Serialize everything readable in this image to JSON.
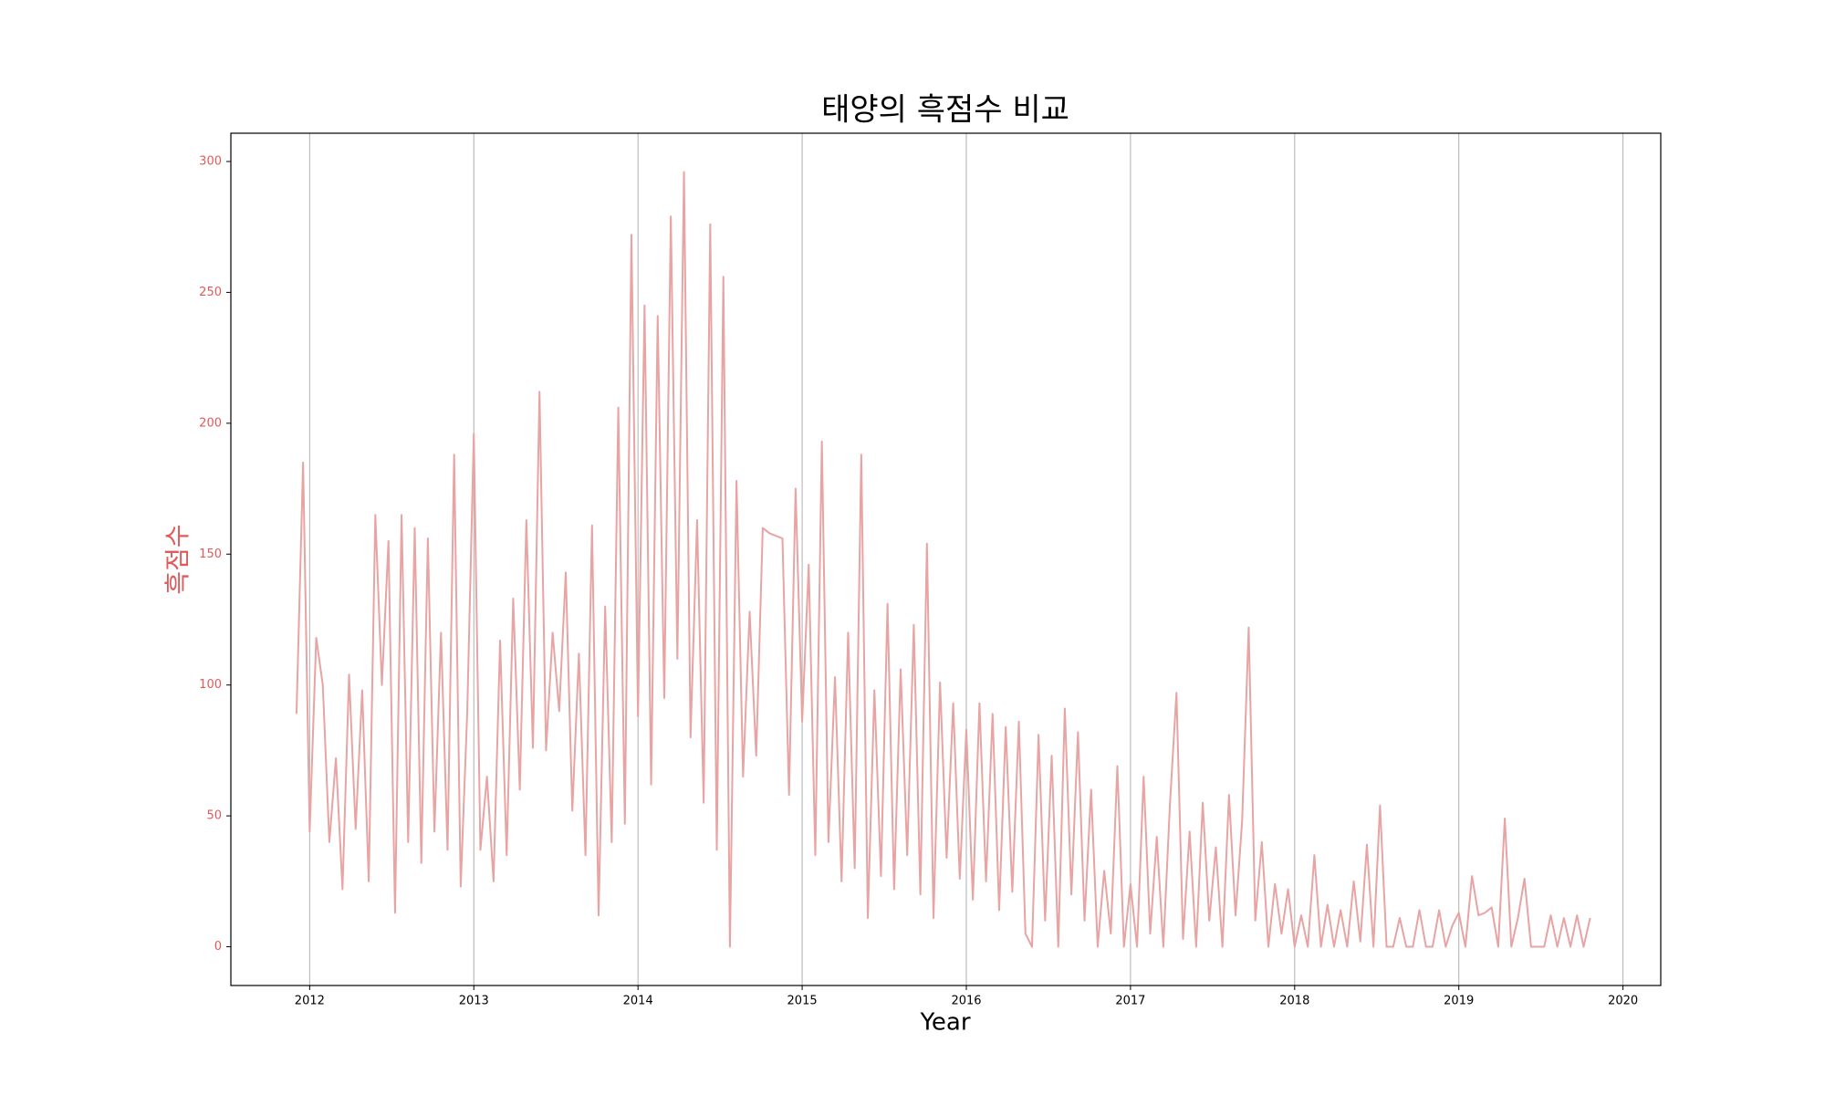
{
  "chart_data": {
    "type": "line",
    "title": "태양의 흑점수 비교",
    "x_label": "Year",
    "y_label": "흑점수",
    "color": "#e8a3a3",
    "label_color": "#e05a5a",
    "grid": true,
    "xlim": [
      2011.52,
      2020.23
    ],
    "xticks": [
      2012,
      2013,
      2014,
      2015,
      2016,
      2017,
      2018,
      2019,
      2020
    ],
    "ylim": [
      -14.8,
      310.8
    ],
    "yticks": [
      0,
      50,
      100,
      150,
      200,
      250,
      300
    ],
    "x": [
      2011.92,
      2011.96,
      2012.0,
      2012.04,
      2012.08,
      2012.12,
      2012.16,
      2012.2,
      2012.24,
      2012.28,
      2012.32,
      2012.36,
      2012.4,
      2012.44,
      2012.48,
      2012.52,
      2012.56,
      2012.6,
      2012.64,
      2012.68,
      2012.72,
      2012.76,
      2012.8,
      2012.84,
      2012.88,
      2012.92,
      2012.96,
      2013.0,
      2013.04,
      2013.08,
      2013.12,
      2013.16,
      2013.2,
      2013.24,
      2013.28,
      2013.32,
      2013.36,
      2013.4,
      2013.44,
      2013.48,
      2013.52,
      2013.56,
      2013.6,
      2013.64,
      2013.68,
      2013.72,
      2013.76,
      2013.8,
      2013.84,
      2013.88,
      2013.92,
      2013.96,
      2014.0,
      2014.04,
      2014.08,
      2014.12,
      2014.16,
      2014.2,
      2014.24,
      2014.28,
      2014.32,
      2014.36,
      2014.4,
      2014.44,
      2014.48,
      2014.52,
      2014.56,
      2014.6,
      2014.64,
      2014.68,
      2014.72,
      2014.76,
      2014.8,
      2014.84,
      2014.88,
      2014.92,
      2014.96,
      2015.0,
      2015.04,
      2015.08,
      2015.12,
      2015.16,
      2015.2,
      2015.24,
      2015.28,
      2015.32,
      2015.36,
      2015.4,
      2015.44,
      2015.48,
      2015.52,
      2015.56,
      2015.6,
      2015.64,
      2015.68,
      2015.72,
      2015.76,
      2015.8,
      2015.84,
      2015.88,
      2015.92,
      2015.96,
      2016.0,
      2016.04,
      2016.08,
      2016.12,
      2016.16,
      2016.2,
      2016.24,
      2016.28,
      2016.32,
      2016.36,
      2016.4,
      2016.44,
      2016.48,
      2016.52,
      2016.56,
      2016.6,
      2016.64,
      2016.68,
      2016.72,
      2016.76,
      2016.8,
      2016.84,
      2016.88,
      2016.92,
      2016.96,
      2017.0,
      2017.04,
      2017.08,
      2017.12,
      2017.16,
      2017.2,
      2017.24,
      2017.28,
      2017.32,
      2017.36,
      2017.4,
      2017.44,
      2017.48,
      2017.52,
      2017.56,
      2017.6,
      2017.64,
      2017.68,
      2017.72,
      2017.76,
      2017.8,
      2017.84,
      2017.88,
      2017.92,
      2017.96,
      2018.0,
      2018.04,
      2018.08,
      2018.12,
      2018.16,
      2018.2,
      2018.24,
      2018.28,
      2018.32,
      2018.36,
      2018.4,
      2018.44,
      2018.48,
      2018.52,
      2018.56,
      2018.6,
      2018.64,
      2018.68,
      2018.72,
      2018.76,
      2018.8,
      2018.84,
      2018.88,
      2018.92,
      2018.96,
      2019.0,
      2019.04,
      2019.08,
      2019.12,
      2019.16,
      2019.2,
      2019.24,
      2019.28,
      2019.32,
      2019.36,
      2019.4,
      2019.44,
      2019.48,
      2019.52,
      2019.56,
      2019.6,
      2019.64,
      2019.68,
      2019.72,
      2019.76,
      2019.8
    ],
    "values": [
      89,
      185,
      44,
      118,
      100,
      40,
      72,
      22,
      104,
      45,
      98,
      25,
      165,
      100,
      155,
      13,
      165,
      40,
      160,
      32,
      156,
      44,
      120,
      37,
      188,
      23,
      90,
      196,
      37,
      65,
      25,
      117,
      35,
      133,
      60,
      163,
      76,
      212,
      75,
      120,
      90,
      143,
      52,
      112,
      35,
      161,
      12,
      130,
      40,
      206,
      47,
      272,
      88,
      245,
      62,
      241,
      95,
      279,
      110,
      296,
      80,
      163,
      55,
      276,
      37,
      256,
      0,
      178,
      65,
      128,
      73,
      160,
      158,
      157,
      156,
      58,
      175,
      86,
      146,
      35,
      193,
      40,
      103,
      25,
      120,
      30,
      188,
      11,
      98,
      27,
      131,
      22,
      106,
      35,
      123,
      20,
      154,
      11,
      101,
      34,
      93,
      26,
      83,
      18,
      93,
      25,
      89,
      14,
      84,
      21,
      86,
      5,
      0,
      81,
      10,
      73,
      0,
      91,
      20,
      82,
      10,
      60,
      0,
      29,
      5,
      69,
      0,
      24,
      0,
      65,
      5,
      42,
      0,
      54,
      97,
      3,
      44,
      0,
      55,
      10,
      38,
      0,
      58,
      12,
      48,
      122,
      10,
      40,
      0,
      24,
      5,
      22,
      0,
      12,
      0,
      35,
      0,
      16,
      0,
      14,
      0,
      25,
      2,
      39,
      0,
      54,
      0,
      0,
      11,
      0,
      0,
      14,
      0,
      0,
      14,
      0,
      8,
      13,
      0,
      27,
      12,
      13,
      15,
      0,
      49,
      0,
      11,
      26,
      0,
      0,
      0,
      12,
      0,
      11,
      0,
      12,
      0,
      11
    ]
  }
}
